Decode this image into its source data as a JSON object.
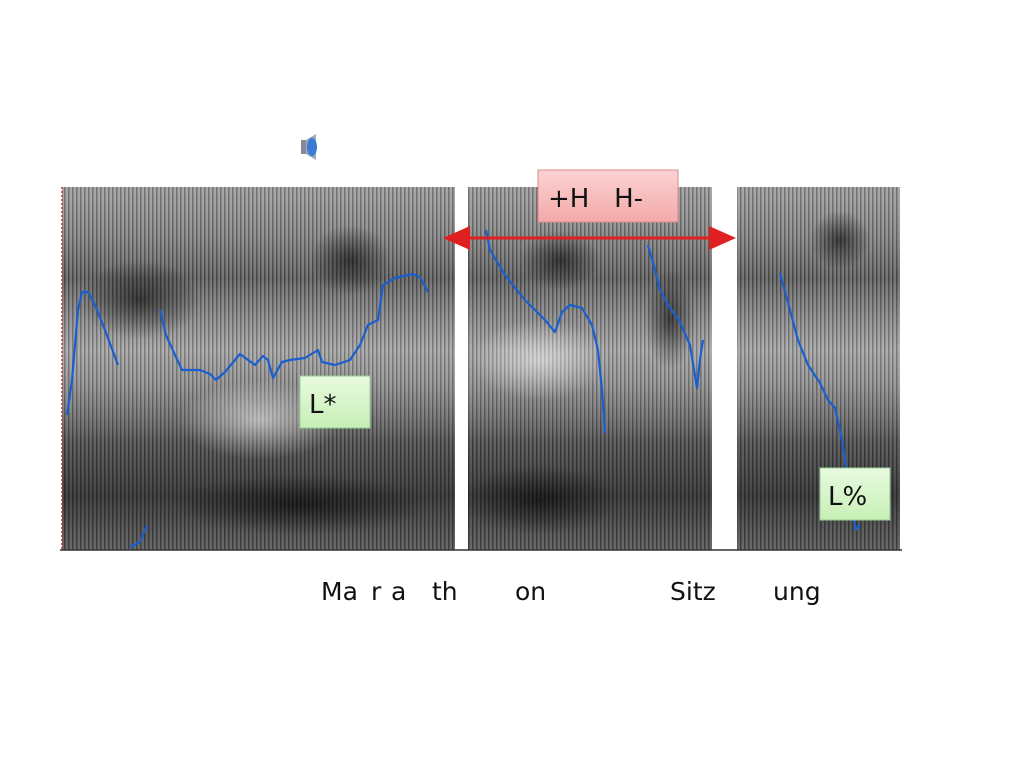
{
  "labels": {
    "phrase_accent": "+H   H-",
    "pitch_accent": "L*",
    "boundary_tone": "L%"
  },
  "words": [
    "Ma",
    "r",
    "a",
    "th",
    "on",
    "Sitz",
    "ung"
  ]
}
